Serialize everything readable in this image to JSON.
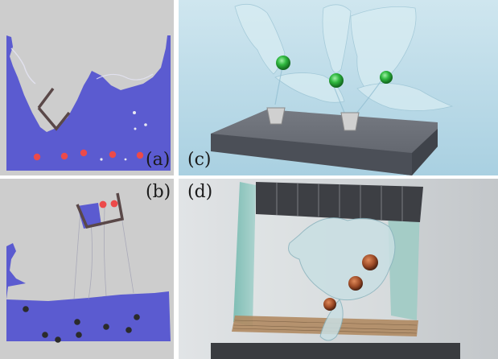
{
  "panels": {
    "a": {
      "label": "(a)"
    },
    "b": {
      "label": "(b)"
    },
    "c": {
      "label": "(c)"
    },
    "d": {
      "label": "(d)"
    }
  },
  "colors": {
    "sim_background": "#c9c9c9",
    "fluid": "#5b5bd0",
    "red_particle": "#ec4a4a",
    "dark_particle": "#2b2b2b",
    "container": "#5a4a4a",
    "render_sky": "#b9dbe9",
    "green_ball": "#2fb83f",
    "platform": "#62666e"
  }
}
